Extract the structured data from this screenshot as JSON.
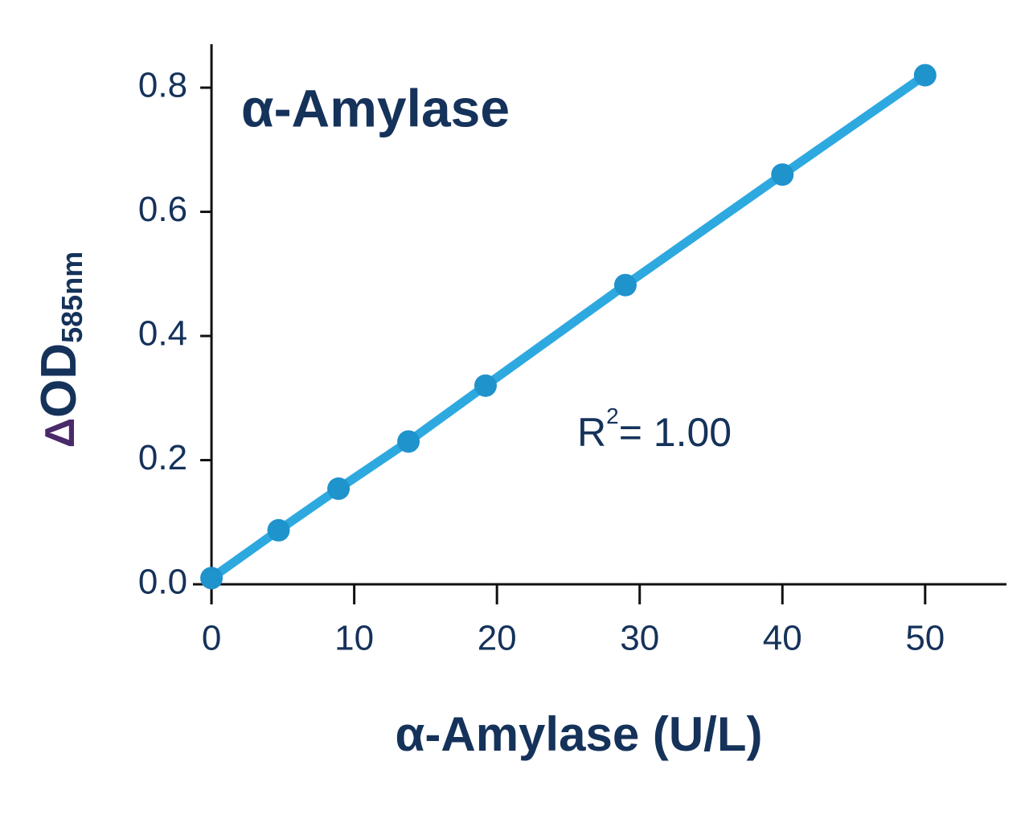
{
  "chart_data": {
    "type": "line",
    "title": "α-Amylase",
    "xlabel": "α-Amylase (U/L)",
    "ylabel": {
      "symbol": "Δ",
      "main": "OD",
      "sub": "585nm"
    },
    "annotation": {
      "base": "R",
      "sup": "2",
      "rest": "= 1.00"
    },
    "x": [
      0,
      4.7,
      8.9,
      13.8,
      19.2,
      29,
      40,
      50
    ],
    "values": [
      0.01,
      0.087,
      0.154,
      0.23,
      0.32,
      0.482,
      0.66,
      0.82
    ],
    "color": "#2ea9e0",
    "marker_color": "#1f93cc",
    "xlim": [
      -1.3,
      55.7
    ],
    "xticks": [
      0,
      10,
      20,
      30,
      40,
      50
    ],
    "ylim": [
      0,
      0.87
    ],
    "yticks": [
      {
        "value": 0,
        "label": "0.0"
      },
      0.2,
      0.4,
      0.6,
      0.8
    ]
  }
}
